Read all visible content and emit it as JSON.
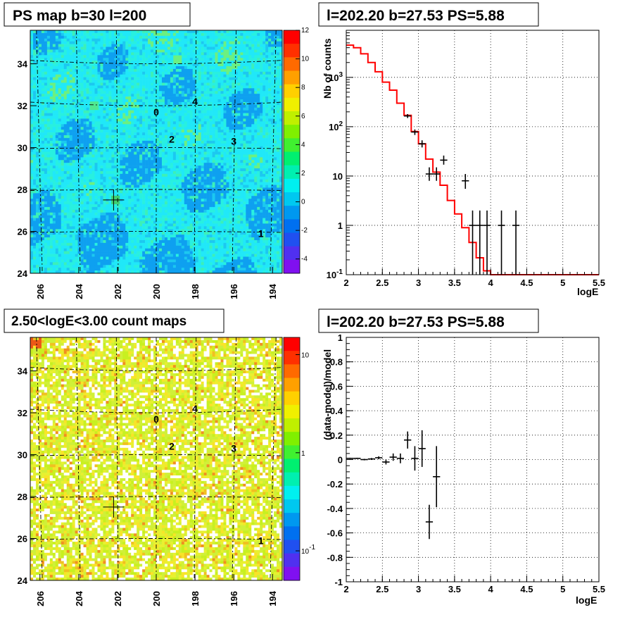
{
  "colors": {
    "map_background_top": "#20e8f0",
    "map_background_bottom": "#3fb8f0",
    "count_map_base": "#c8f020",
    "model_line": "#ff0000",
    "data_points": "#000000"
  },
  "chart_data": [
    {
      "type": "heatmap",
      "title": "PS map b=30 l=200",
      "xlabel": "",
      "ylabel": "",
      "x_axis": {
        "reversed": true,
        "range": [
          206.5,
          193.5
        ],
        "ticks": [
          "206",
          "204",
          "202",
          "200",
          "198",
          "196",
          "194"
        ]
      },
      "y_axis": {
        "range": [
          24,
          35.6
        ],
        "ticks": [
          "24",
          "26",
          "28",
          "30",
          "32",
          "34"
        ]
      },
      "colorbar": {
        "scale": "linear",
        "range": [
          -5,
          12
        ],
        "ticks": [
          "-4",
          "-2",
          "0",
          "2",
          "4",
          "6",
          "8",
          "10",
          "12"
        ]
      },
      "sources": [
        {
          "label": "0",
          "l": 200.0,
          "b": 31.7
        },
        {
          "label": "1",
          "l": 194.6,
          "b": 25.9
        },
        {
          "label": "2",
          "l": 199.2,
          "b": 30.4
        },
        {
          "label": "3",
          "l": 196.0,
          "b": 30.3
        },
        {
          "label": "4",
          "l": 198.0,
          "b": 32.2
        }
      ],
      "marker": {
        "l": 202.2,
        "b": 27.5
      },
      "grid": "dashed galactic grid"
    },
    {
      "type": "line",
      "title": "l=202.20 b=27.53 PS=5.88",
      "xlabel": "logE",
      "ylabel": "Nb of counts",
      "xlim": [
        2,
        5.5
      ],
      "ylim": [
        0.1,
        9000
      ],
      "yscale": "log",
      "x_ticks": [
        "2",
        "2.5",
        "3",
        "3.5",
        "4",
        "4.5",
        "5",
        "5.5"
      ],
      "y_ticks": [
        {
          "value": 0.1,
          "label": "10",
          "sup": "-1"
        },
        {
          "value": 1,
          "label": "1",
          "sup": ""
        },
        {
          "value": 10,
          "label": "10",
          "sup": ""
        },
        {
          "value": 100,
          "label": "10",
          "sup": "2"
        },
        {
          "value": 1000,
          "label": "10",
          "sup": "3"
        }
      ],
      "grid": true,
      "model_bin_width": 0.1,
      "model_bins_start": [
        2.0,
        2.1,
        2.2,
        2.3,
        2.4,
        2.5,
        2.6,
        2.7,
        2.8,
        2.9,
        3.0,
        3.1,
        3.2,
        3.3,
        3.4,
        3.5,
        3.6,
        3.7,
        3.8,
        3.9,
        4.0,
        4.1,
        4.2,
        4.3,
        4.4,
        4.5,
        4.6,
        4.7,
        4.8,
        4.9,
        5.0,
        5.1,
        5.2,
        5.3,
        5.4
      ],
      "model_values": [
        4500,
        4000,
        3000,
        2000,
        1300,
        800,
        550,
        300,
        170,
        80,
        45,
        22,
        12,
        6.5,
        3.2,
        1.7,
        0.9,
        0.45,
        0.22,
        0.12,
        0.1,
        0.1,
        0.1,
        0.1,
        0.1,
        0.1,
        0.1,
        0.1,
        0.1,
        0.1,
        0.1,
        0.1,
        0.1,
        0.1,
        0.1
      ],
      "data_points": [
        {
          "x": 2.85,
          "y": 165,
          "xerr": 0.05,
          "ylo": 150,
          "yhi": 180
        },
        {
          "x": 2.95,
          "y": 78,
          "xerr": 0.05,
          "ylo": 68,
          "yhi": 88
        },
        {
          "x": 3.05,
          "y": 45,
          "xerr": 0.05,
          "ylo": 38,
          "yhi": 53
        },
        {
          "x": 3.15,
          "y": 11,
          "xerr": 0.05,
          "ylo": 8,
          "yhi": 15
        },
        {
          "x": 3.25,
          "y": 11,
          "xerr": 0.05,
          "ylo": 8,
          "yhi": 15
        },
        {
          "x": 3.35,
          "y": 21,
          "xerr": 0.05,
          "ylo": 17,
          "yhi": 26
        },
        {
          "x": 3.65,
          "y": 8,
          "xerr": 0.05,
          "ylo": 5.5,
          "yhi": 11
        },
        {
          "x": 3.75,
          "y": 1,
          "xerr": 0.05,
          "ylo": 0.1,
          "yhi": 2
        },
        {
          "x": 3.85,
          "y": 1,
          "xerr": 0.05,
          "ylo": 0.1,
          "yhi": 2
        },
        {
          "x": 3.95,
          "y": 1,
          "xerr": 0.05,
          "ylo": 0.1,
          "yhi": 2
        },
        {
          "x": 4.15,
          "y": 1,
          "xerr": 0.05,
          "ylo": 0.1,
          "yhi": 2
        },
        {
          "x": 4.35,
          "y": 1,
          "xerr": 0.05,
          "ylo": 0.1,
          "yhi": 2
        }
      ]
    },
    {
      "type": "heatmap",
      "title": "2.50<logE<3.00 count maps",
      "xlabel": "",
      "ylabel": "",
      "x_axis": {
        "reversed": true,
        "range": [
          206.5,
          193.5
        ],
        "ticks": [
          "206",
          "204",
          "202",
          "200",
          "198",
          "196",
          "194"
        ]
      },
      "y_axis": {
        "range": [
          24,
          35.6
        ],
        "ticks": [
          "24",
          "26",
          "28",
          "30",
          "32",
          "34"
        ]
      },
      "colorbar": {
        "scale": "log",
        "range": [
          0.05,
          15
        ],
        "ticks": [
          {
            "value": 10,
            "label": "10",
            "sup": ""
          },
          {
            "value": 1,
            "label": "1",
            "sup": ""
          },
          {
            "value": 0.1,
            "label": "10",
            "sup": "-1"
          }
        ]
      },
      "sources": [
        {
          "label": "0",
          "l": 200.0,
          "b": 31.7
        },
        {
          "label": "1",
          "l": 194.6,
          "b": 25.9
        },
        {
          "label": "2",
          "l": 199.2,
          "b": 30.4
        },
        {
          "label": "3",
          "l": 196.0,
          "b": 30.3
        },
        {
          "label": "4",
          "l": 198.0,
          "b": 32.2
        }
      ],
      "marker": {
        "l": 202.2,
        "b": 27.5
      },
      "grid": "dashed galactic grid"
    },
    {
      "type": "scatter",
      "title": "l=202.20 b=27.53 PS=5.88",
      "xlabel": "logE",
      "ylabel": "(data-model)/model",
      "xlim": [
        2,
        5.5
      ],
      "ylim": [
        -1,
        1
      ],
      "x_ticks": [
        "2",
        "2.5",
        "3",
        "3.5",
        "4",
        "4.5",
        "5",
        "5.5"
      ],
      "y_ticks": [
        "-1",
        "-0.8",
        "-0.6",
        "-0.4",
        "-0.2",
        "0",
        "0.2",
        "0.4",
        "0.6",
        "0.8",
        "1"
      ],
      "grid": true,
      "data_points": [
        {
          "x": 2.05,
          "y": 0.01,
          "xerr": 0.05,
          "yerr": 0.005
        },
        {
          "x": 2.15,
          "y": 0.01,
          "xerr": 0.05,
          "yerr": 0.005
        },
        {
          "x": 2.25,
          "y": 0.0,
          "xerr": 0.05,
          "yerr": 0.006
        },
        {
          "x": 2.35,
          "y": 0.005,
          "xerr": 0.05,
          "yerr": 0.008
        },
        {
          "x": 2.45,
          "y": 0.015,
          "xerr": 0.05,
          "yerr": 0.012
        },
        {
          "x": 2.55,
          "y": -0.02,
          "xerr": 0.05,
          "yerr": 0.02
        },
        {
          "x": 2.65,
          "y": 0.02,
          "xerr": 0.05,
          "yerr": 0.03
        },
        {
          "x": 2.75,
          "y": 0.01,
          "xerr": 0.05,
          "yerr": 0.04
        },
        {
          "x": 2.85,
          "y": 0.16,
          "xerr": 0.05,
          "yerr": 0.07
        },
        {
          "x": 2.95,
          "y": 0.01,
          "xerr": 0.05,
          "yerr": 0.1
        },
        {
          "x": 3.05,
          "y": 0.09,
          "xerr": 0.05,
          "yerr": 0.15
        },
        {
          "x": 3.15,
          "y": -0.51,
          "xerr": 0.05,
          "yerr": 0.14
        },
        {
          "x": 3.25,
          "y": -0.14,
          "xerr": 0.05,
          "yerr": 0.25
        }
      ]
    }
  ]
}
